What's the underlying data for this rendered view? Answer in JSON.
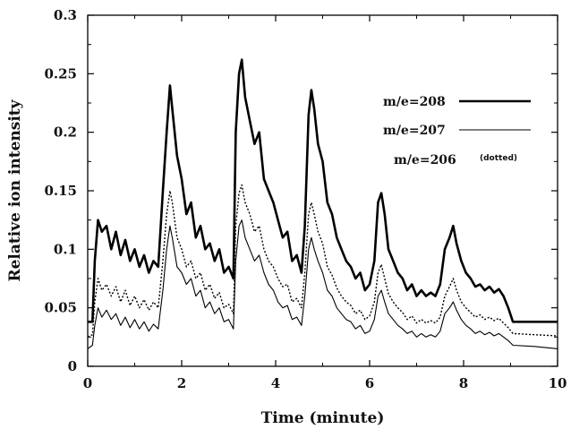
{
  "chart_data": {
    "type": "line",
    "xlabel": "Time (minute)",
    "ylabel": "Relative ion intensity",
    "xlim": [
      0,
      10
    ],
    "ylim": [
      0,
      0.3
    ],
    "xticks": [
      "0",
      "2",
      "4",
      "6",
      "8",
      "10"
    ],
    "yticks": [
      "0",
      "0.05",
      "0.1",
      "0.15",
      "0.2",
      "0.25",
      "0.3"
    ],
    "grid": false,
    "legend_position": "top-right",
    "series": [
      {
        "name": "m/e=208",
        "note": "",
        "style": "thick",
        "points": [
          [
            0,
            0.038
          ],
          [
            0.1,
            0.038
          ],
          [
            0.15,
            0.09
          ],
          [
            0.22,
            0.125
          ],
          [
            0.3,
            0.115
          ],
          [
            0.4,
            0.12
          ],
          [
            0.5,
            0.1
          ],
          [
            0.6,
            0.115
          ],
          [
            0.7,
            0.095
          ],
          [
            0.8,
            0.108
          ],
          [
            0.9,
            0.09
          ],
          [
            1.0,
            0.1
          ],
          [
            1.1,
            0.085
          ],
          [
            1.2,
            0.095
          ],
          [
            1.3,
            0.08
          ],
          [
            1.4,
            0.09
          ],
          [
            1.5,
            0.085
          ],
          [
            1.6,
            0.15
          ],
          [
            1.68,
            0.2
          ],
          [
            1.75,
            0.24
          ],
          [
            1.8,
            0.22
          ],
          [
            1.9,
            0.18
          ],
          [
            2.0,
            0.16
          ],
          [
            2.1,
            0.13
          ],
          [
            2.2,
            0.14
          ],
          [
            2.3,
            0.11
          ],
          [
            2.4,
            0.12
          ],
          [
            2.5,
            0.1
          ],
          [
            2.6,
            0.105
          ],
          [
            2.7,
            0.09
          ],
          [
            2.8,
            0.1
          ],
          [
            2.9,
            0.08
          ],
          [
            3.0,
            0.085
          ],
          [
            3.1,
            0.075
          ],
          [
            3.15,
            0.2
          ],
          [
            3.22,
            0.25
          ],
          [
            3.28,
            0.262
          ],
          [
            3.35,
            0.23
          ],
          [
            3.45,
            0.21
          ],
          [
            3.55,
            0.19
          ],
          [
            3.65,
            0.2
          ],
          [
            3.75,
            0.16
          ],
          [
            3.85,
            0.15
          ],
          [
            3.95,
            0.14
          ],
          [
            4.05,
            0.125
          ],
          [
            4.15,
            0.11
          ],
          [
            4.25,
            0.115
          ],
          [
            4.35,
            0.09
          ],
          [
            4.45,
            0.095
          ],
          [
            4.55,
            0.08
          ],
          [
            4.62,
            0.12
          ],
          [
            4.7,
            0.215
          ],
          [
            4.76,
            0.236
          ],
          [
            4.82,
            0.22
          ],
          [
            4.9,
            0.19
          ],
          [
            5.0,
            0.175
          ],
          [
            5.1,
            0.14
          ],
          [
            5.2,
            0.13
          ],
          [
            5.3,
            0.11
          ],
          [
            5.4,
            0.1
          ],
          [
            5.5,
            0.09
          ],
          [
            5.6,
            0.085
          ],
          [
            5.7,
            0.075
          ],
          [
            5.8,
            0.08
          ],
          [
            5.9,
            0.065
          ],
          [
            6.0,
            0.07
          ],
          [
            6.1,
            0.09
          ],
          [
            6.18,
            0.14
          ],
          [
            6.25,
            0.148
          ],
          [
            6.32,
            0.13
          ],
          [
            6.4,
            0.1
          ],
          [
            6.5,
            0.09
          ],
          [
            6.6,
            0.08
          ],
          [
            6.7,
            0.075
          ],
          [
            6.8,
            0.065
          ],
          [
            6.9,
            0.07
          ],
          [
            7.0,
            0.06
          ],
          [
            7.1,
            0.065
          ],
          [
            7.2,
            0.06
          ],
          [
            7.3,
            0.063
          ],
          [
            7.4,
            0.06
          ],
          [
            7.5,
            0.07
          ],
          [
            7.6,
            0.1
          ],
          [
            7.7,
            0.11
          ],
          [
            7.78,
            0.12
          ],
          [
            7.85,
            0.105
          ],
          [
            7.95,
            0.09
          ],
          [
            8.05,
            0.08
          ],
          [
            8.15,
            0.075
          ],
          [
            8.25,
            0.068
          ],
          [
            8.35,
            0.07
          ],
          [
            8.45,
            0.065
          ],
          [
            8.55,
            0.068
          ],
          [
            8.65,
            0.063
          ],
          [
            8.75,
            0.066
          ],
          [
            8.85,
            0.06
          ],
          [
            8.95,
            0.05
          ],
          [
            9.05,
            0.038
          ],
          [
            9.5,
            0.038
          ],
          [
            10,
            0.038
          ]
        ]
      },
      {
        "name": "m/e=207",
        "note": "",
        "style": "thin",
        "points": [
          [
            0,
            0.015
          ],
          [
            0.1,
            0.018
          ],
          [
            0.15,
            0.035
          ],
          [
            0.22,
            0.05
          ],
          [
            0.3,
            0.042
          ],
          [
            0.4,
            0.048
          ],
          [
            0.5,
            0.04
          ],
          [
            0.6,
            0.045
          ],
          [
            0.7,
            0.035
          ],
          [
            0.8,
            0.042
          ],
          [
            0.9,
            0.033
          ],
          [
            1.0,
            0.04
          ],
          [
            1.1,
            0.032
          ],
          [
            1.2,
            0.038
          ],
          [
            1.3,
            0.03
          ],
          [
            1.4,
            0.036
          ],
          [
            1.5,
            0.032
          ],
          [
            1.6,
            0.065
          ],
          [
            1.68,
            0.1
          ],
          [
            1.75,
            0.12
          ],
          [
            1.8,
            0.11
          ],
          [
            1.9,
            0.085
          ],
          [
            2.0,
            0.08
          ],
          [
            2.1,
            0.07
          ],
          [
            2.2,
            0.075
          ],
          [
            2.3,
            0.06
          ],
          [
            2.4,
            0.065
          ],
          [
            2.5,
            0.05
          ],
          [
            2.6,
            0.055
          ],
          [
            2.7,
            0.045
          ],
          [
            2.8,
            0.05
          ],
          [
            2.9,
            0.038
          ],
          [
            3.0,
            0.04
          ],
          [
            3.1,
            0.032
          ],
          [
            3.15,
            0.09
          ],
          [
            3.22,
            0.12
          ],
          [
            3.28,
            0.125
          ],
          [
            3.35,
            0.11
          ],
          [
            3.45,
            0.1
          ],
          [
            3.55,
            0.09
          ],
          [
            3.65,
            0.095
          ],
          [
            3.75,
            0.08
          ],
          [
            3.85,
            0.07
          ],
          [
            3.95,
            0.065
          ],
          [
            4.05,
            0.055
          ],
          [
            4.15,
            0.05
          ],
          [
            4.25,
            0.052
          ],
          [
            4.35,
            0.04
          ],
          [
            4.45,
            0.042
          ],
          [
            4.55,
            0.035
          ],
          [
            4.62,
            0.06
          ],
          [
            4.7,
            0.1
          ],
          [
            4.76,
            0.11
          ],
          [
            4.82,
            0.1
          ],
          [
            4.9,
            0.09
          ],
          [
            5.0,
            0.08
          ],
          [
            5.1,
            0.065
          ],
          [
            5.2,
            0.06
          ],
          [
            5.3,
            0.05
          ],
          [
            5.4,
            0.045
          ],
          [
            5.5,
            0.04
          ],
          [
            5.6,
            0.038
          ],
          [
            5.7,
            0.032
          ],
          [
            5.8,
            0.035
          ],
          [
            5.9,
            0.028
          ],
          [
            6.0,
            0.03
          ],
          [
            6.1,
            0.04
          ],
          [
            6.18,
            0.06
          ],
          [
            6.25,
            0.065
          ],
          [
            6.32,
            0.055
          ],
          [
            6.4,
            0.045
          ],
          [
            6.5,
            0.04
          ],
          [
            6.6,
            0.035
          ],
          [
            6.7,
            0.032
          ],
          [
            6.8,
            0.028
          ],
          [
            6.9,
            0.03
          ],
          [
            7.0,
            0.025
          ],
          [
            7.1,
            0.028
          ],
          [
            7.2,
            0.025
          ],
          [
            7.3,
            0.027
          ],
          [
            7.4,
            0.025
          ],
          [
            7.5,
            0.03
          ],
          [
            7.6,
            0.045
          ],
          [
            7.7,
            0.05
          ],
          [
            7.78,
            0.055
          ],
          [
            7.85,
            0.048
          ],
          [
            7.95,
            0.04
          ],
          [
            8.05,
            0.035
          ],
          [
            8.15,
            0.032
          ],
          [
            8.25,
            0.028
          ],
          [
            8.35,
            0.03
          ],
          [
            8.45,
            0.027
          ],
          [
            8.55,
            0.029
          ],
          [
            8.65,
            0.026
          ],
          [
            8.75,
            0.028
          ],
          [
            8.85,
            0.025
          ],
          [
            8.95,
            0.022
          ],
          [
            9.05,
            0.018
          ],
          [
            9.5,
            0.017
          ],
          [
            10,
            0.015
          ]
        ]
      },
      {
        "name": "m/e=206",
        "note": "(dotted)",
        "style": "dotted",
        "points": [
          [
            0,
            0.025
          ],
          [
            0.1,
            0.027
          ],
          [
            0.15,
            0.055
          ],
          [
            0.22,
            0.075
          ],
          [
            0.3,
            0.065
          ],
          [
            0.4,
            0.07
          ],
          [
            0.5,
            0.06
          ],
          [
            0.6,
            0.068
          ],
          [
            0.7,
            0.055
          ],
          [
            0.8,
            0.065
          ],
          [
            0.9,
            0.052
          ],
          [
            1.0,
            0.06
          ],
          [
            1.1,
            0.05
          ],
          [
            1.2,
            0.057
          ],
          [
            1.3,
            0.048
          ],
          [
            1.4,
            0.055
          ],
          [
            1.5,
            0.05
          ],
          [
            1.6,
            0.09
          ],
          [
            1.68,
            0.13
          ],
          [
            1.75,
            0.15
          ],
          [
            1.8,
            0.14
          ],
          [
            1.9,
            0.11
          ],
          [
            2.0,
            0.1
          ],
          [
            2.1,
            0.085
          ],
          [
            2.2,
            0.09
          ],
          [
            2.3,
            0.075
          ],
          [
            2.4,
            0.08
          ],
          [
            2.5,
            0.065
          ],
          [
            2.6,
            0.07
          ],
          [
            2.7,
            0.058
          ],
          [
            2.8,
            0.063
          ],
          [
            2.9,
            0.05
          ],
          [
            3.0,
            0.053
          ],
          [
            3.1,
            0.045
          ],
          [
            3.15,
            0.12
          ],
          [
            3.22,
            0.148
          ],
          [
            3.28,
            0.155
          ],
          [
            3.35,
            0.14
          ],
          [
            3.45,
            0.13
          ],
          [
            3.55,
            0.115
          ],
          [
            3.65,
            0.12
          ],
          [
            3.75,
            0.1
          ],
          [
            3.85,
            0.09
          ],
          [
            3.95,
            0.085
          ],
          [
            4.05,
            0.075
          ],
          [
            4.15,
            0.068
          ],
          [
            4.25,
            0.07
          ],
          [
            4.35,
            0.055
          ],
          [
            4.45,
            0.058
          ],
          [
            4.55,
            0.05
          ],
          [
            4.62,
            0.08
          ],
          [
            4.7,
            0.13
          ],
          [
            4.76,
            0.14
          ],
          [
            4.82,
            0.13
          ],
          [
            4.9,
            0.115
          ],
          [
            5.0,
            0.105
          ],
          [
            5.1,
            0.085
          ],
          [
            5.2,
            0.078
          ],
          [
            5.3,
            0.067
          ],
          [
            5.4,
            0.06
          ],
          [
            5.5,
            0.055
          ],
          [
            5.6,
            0.052
          ],
          [
            5.7,
            0.045
          ],
          [
            5.8,
            0.048
          ],
          [
            5.9,
            0.04
          ],
          [
            6.0,
            0.043
          ],
          [
            6.1,
            0.055
          ],
          [
            6.18,
            0.08
          ],
          [
            6.25,
            0.087
          ],
          [
            6.32,
            0.075
          ],
          [
            6.4,
            0.062
          ],
          [
            6.5,
            0.055
          ],
          [
            6.6,
            0.05
          ],
          [
            6.7,
            0.046
          ],
          [
            6.8,
            0.04
          ],
          [
            6.9,
            0.043
          ],
          [
            7.0,
            0.037
          ],
          [
            7.1,
            0.04
          ],
          [
            7.2,
            0.037
          ],
          [
            7.3,
            0.039
          ],
          [
            7.4,
            0.037
          ],
          [
            7.5,
            0.042
          ],
          [
            7.6,
            0.06
          ],
          [
            7.7,
            0.068
          ],
          [
            7.78,
            0.075
          ],
          [
            7.85,
            0.065
          ],
          [
            7.95,
            0.055
          ],
          [
            8.05,
            0.05
          ],
          [
            8.15,
            0.046
          ],
          [
            8.25,
            0.042
          ],
          [
            8.35,
            0.044
          ],
          [
            8.45,
            0.04
          ],
          [
            8.55,
            0.042
          ],
          [
            8.65,
            0.039
          ],
          [
            8.75,
            0.041
          ],
          [
            8.85,
            0.037
          ],
          [
            8.95,
            0.033
          ],
          [
            9.05,
            0.028
          ],
          [
            9.5,
            0.027
          ],
          [
            10,
            0.026
          ]
        ]
      }
    ]
  }
}
